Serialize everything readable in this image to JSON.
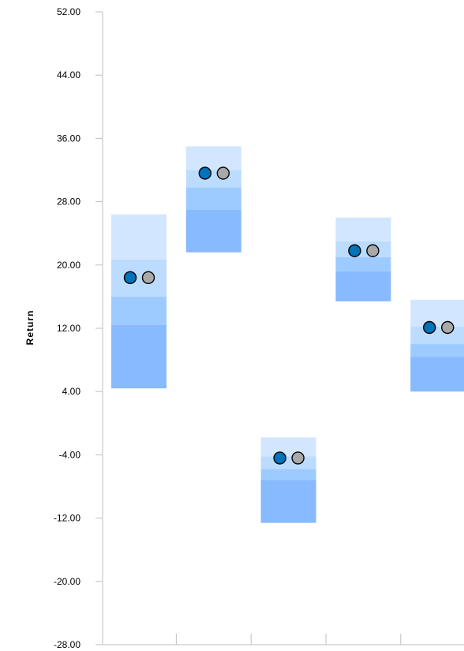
{
  "chart_data": {
    "type": "box",
    "ylabel": "Return",
    "ylim": [
      -28,
      52
    ],
    "yticks": [
      "52.00",
      "44.00",
      "36.00",
      "28.00",
      "20.00",
      "12.00",
      "4.00",
      "-4.00",
      "-12.00",
      "-20.00",
      "-28.00"
    ],
    "ytick_values": [
      52,
      44,
      36,
      28,
      20,
      12,
      4,
      -4,
      -12,
      -20,
      -28
    ],
    "grid": false,
    "boxes": [
      {
        "top": 26.4,
        "p75": 20.7,
        "median": 16.0,
        "p25": 12.4,
        "bottom": 4.4,
        "marker_primary": 18.4,
        "marker_secondary": 18.4
      },
      {
        "top": 35.0,
        "p75": 32.0,
        "median": 29.8,
        "p25": 27.0,
        "bottom": 21.6,
        "marker_primary": 31.6,
        "marker_secondary": 31.6
      },
      {
        "top": -1.8,
        "p75": -4.2,
        "median": -5.8,
        "p25": -7.2,
        "bottom": -12.6,
        "marker_primary": -4.4,
        "marker_secondary": -4.4
      },
      {
        "top": 26.0,
        "p75": 23.0,
        "median": 21.0,
        "p25": 19.2,
        "bottom": 15.4,
        "marker_primary": 21.8,
        "marker_secondary": 21.8
      },
      {
        "top": 15.6,
        "p75": 12.2,
        "median": 10.0,
        "p25": 8.4,
        "bottom": 4.0,
        "marker_primary": 12.1,
        "marker_secondary": 12.1
      }
    ],
    "colors": {
      "band_top": "#d2e7ff",
      "band_upper_mid": "#bcdcff",
      "band_lower_mid": "#9ecbff",
      "band_bottom": "#87baff",
      "marker_primary": "#0073b9",
      "marker_secondary": "#a9a9a9",
      "axis": "#bfbfbf"
    }
  }
}
